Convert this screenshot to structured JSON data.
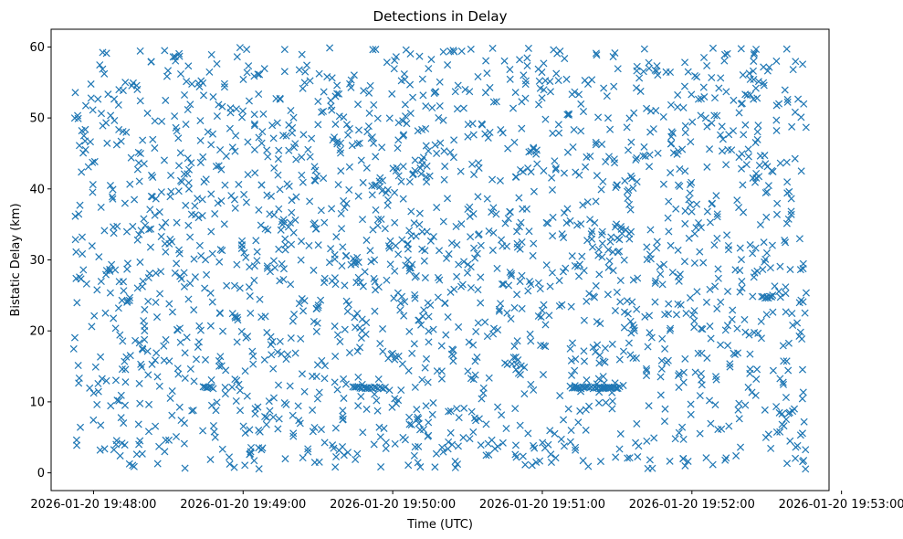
{
  "chart_data": {
    "type": "scatter",
    "title": "Detections in Delay",
    "xlabel": "Time (UTC)",
    "ylabel": "Bistatic Delay (km)",
    "marker": "x",
    "marker_color": "#1f77b4",
    "grid": false,
    "legend": "none",
    "x_time_range": [
      "2026-01-20 19:47:52",
      "2026-01-20 19:52:46"
    ],
    "xlim": [
      "2026-01-20 19:47:43",
      "2026-01-20 19:52:55"
    ],
    "ylim": [
      -2.5,
      62.5
    ],
    "x_ticks": [
      "2026-01-20 19:48:00",
      "2026-01-20 19:49:00",
      "2026-01-20 19:50:00",
      "2026-01-20 19:51:00",
      "2026-01-20 19:52:00",
      "2026-01-20 19:53:00"
    ],
    "y_ticks": [
      0,
      10,
      20,
      30,
      40,
      50,
      60
    ],
    "delay_range": [
      0.5,
      60
    ],
    "approx_point_count": 2000,
    "horizontal_streaks": [
      {
        "start": "2026-01-20 19:48:44",
        "end": "2026-01-20 19:48:48",
        "delay": 12.0
      },
      {
        "start": "2026-01-20 19:49:44",
        "end": "2026-01-20 19:49:57",
        "delay": 12.0
      },
      {
        "start": "2026-01-20 19:51:12",
        "end": "2026-01-20 19:51:31",
        "delay": 12.0
      },
      {
        "start": "2026-01-20 19:52:28",
        "end": "2026-01-20 19:52:32",
        "delay": 24.7
      }
    ]
  }
}
